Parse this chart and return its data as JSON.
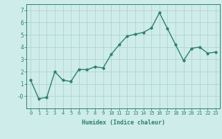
{
  "x": [
    0,
    1,
    2,
    3,
    4,
    5,
    6,
    7,
    8,
    9,
    10,
    11,
    12,
    13,
    14,
    15,
    16,
    17,
    18,
    19,
    20,
    21,
    22,
    23
  ],
  "y": [
    1.3,
    -0.2,
    -0.1,
    2.0,
    1.3,
    1.2,
    2.2,
    2.15,
    2.4,
    2.3,
    3.4,
    4.2,
    4.9,
    5.05,
    5.2,
    5.55,
    6.8,
    5.5,
    4.2,
    2.9,
    3.9,
    4.0,
    3.5,
    3.6
  ],
  "line_color": "#2d7d6f",
  "marker": "o",
  "markersize": 2.5,
  "linewidth": 1.0,
  "xlabel": "Humidex (Indice chaleur)",
  "xlim": [
    -0.5,
    23.5
  ],
  "ylim": [
    -1.0,
    7.5
  ],
  "yticks": [
    0,
    1,
    2,
    3,
    4,
    5,
    6,
    7
  ],
  "ytick_labels": [
    "-0",
    "1",
    "2",
    "3",
    "4",
    "5",
    "6",
    "7"
  ],
  "xticks": [
    0,
    1,
    2,
    3,
    4,
    5,
    6,
    7,
    8,
    9,
    10,
    11,
    12,
    13,
    14,
    15,
    16,
    17,
    18,
    19,
    20,
    21,
    22,
    23
  ],
  "bg_color": "#ceecea",
  "grid_color": "#b0d4d0",
  "text_color": "#2d7d6f",
  "font_family": "monospace",
  "xlabel_fontsize": 6.0,
  "tick_fontsize": 5.0
}
